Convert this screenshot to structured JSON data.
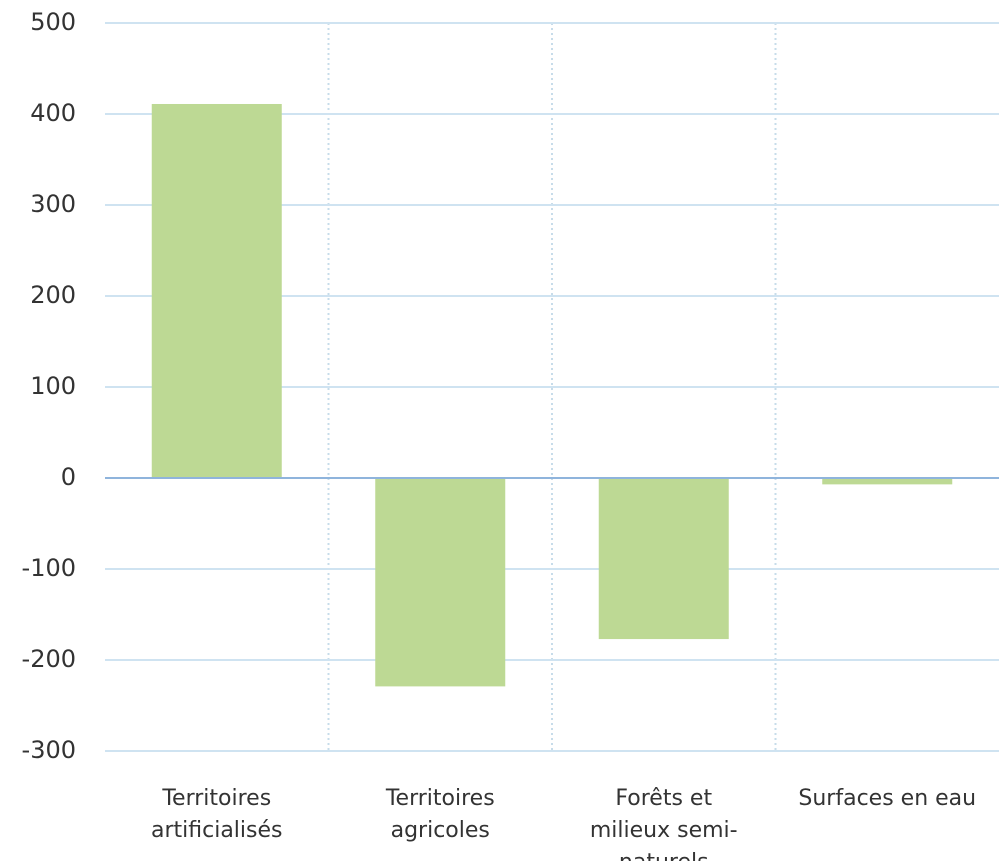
{
  "chart_data": {
    "type": "bar",
    "categories": [
      "Territoires artificialisés",
      "Territoires agricoles",
      "Forêts et milieux semi-naturels",
      "Surfaces en eau"
    ],
    "values": [
      411,
      -229,
      -177,
      -7
    ],
    "color": "#bdd994",
    "ylim": [
      -300,
      500
    ],
    "yticks": [
      -300,
      -200,
      -100,
      0,
      100,
      200,
      300,
      400,
      500
    ],
    "grid": true
  }
}
